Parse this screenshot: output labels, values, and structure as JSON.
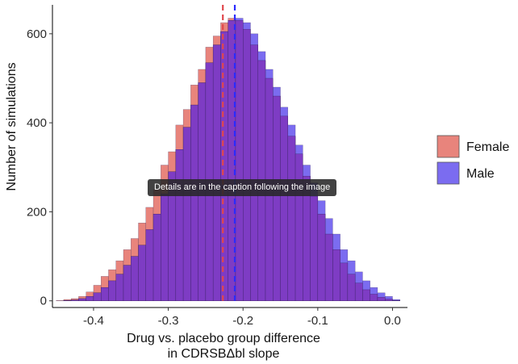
{
  "chart_data": {
    "type": "histogram",
    "xlabel_line1": "Drug vs. placebo group difference",
    "xlabel_line2": "in CDRSBΔbl slope",
    "ylabel": "Number of simulations",
    "xlim": [
      -0.455,
      0.02
    ],
    "ylim": [
      -15,
      665
    ],
    "x_ticks": [
      -0.4,
      -0.3,
      -0.2,
      -0.1,
      0.0
    ],
    "x_tick_labels": [
      "-0.4",
      "-0.3",
      "-0.2",
      "-0.1",
      "0.0"
    ],
    "y_ticks": [
      0,
      200,
      400,
      600
    ],
    "y_tick_labels": [
      "0",
      "200",
      "400",
      "600"
    ],
    "bin_start": -0.45,
    "bin_width": 0.01,
    "series": [
      {
        "name": "Female",
        "color": "#e8847c",
        "mean": -0.227,
        "mean_line_color": "#e0474c",
        "counts": [
          1,
          3,
          5,
          10,
          20,
          35,
          55,
          70,
          90,
          115,
          140,
          175,
          210,
          250,
          305,
          335,
          395,
          430,
          485,
          520,
          570,
          595,
          625,
          635,
          630,
          610,
          575,
          540,
          500,
          460,
          415,
          370,
          330,
          280,
          235,
          195,
          150,
          115,
          85,
          60,
          40,
          25,
          15,
          8,
          4,
          1
        ]
      },
      {
        "name": "Male",
        "color": "#7b6cf0",
        "mean": -0.211,
        "mean_line_color": "#2b2bff",
        "counts": [
          0,
          1,
          2,
          5,
          10,
          18,
          30,
          45,
          60,
          80,
          100,
          125,
          160,
          195,
          240,
          290,
          340,
          390,
          440,
          490,
          535,
          575,
          605,
          630,
          635,
          625,
          600,
          560,
          520,
          480,
          435,
          395,
          350,
          305,
          265,
          225,
          185,
          150,
          115,
          90,
          65,
          45,
          30,
          18,
          10,
          3
        ]
      }
    ],
    "overlap_color": "#7e3cc4",
    "legend_position": "right"
  },
  "tooltip_text": "Details are in the caption following the image"
}
